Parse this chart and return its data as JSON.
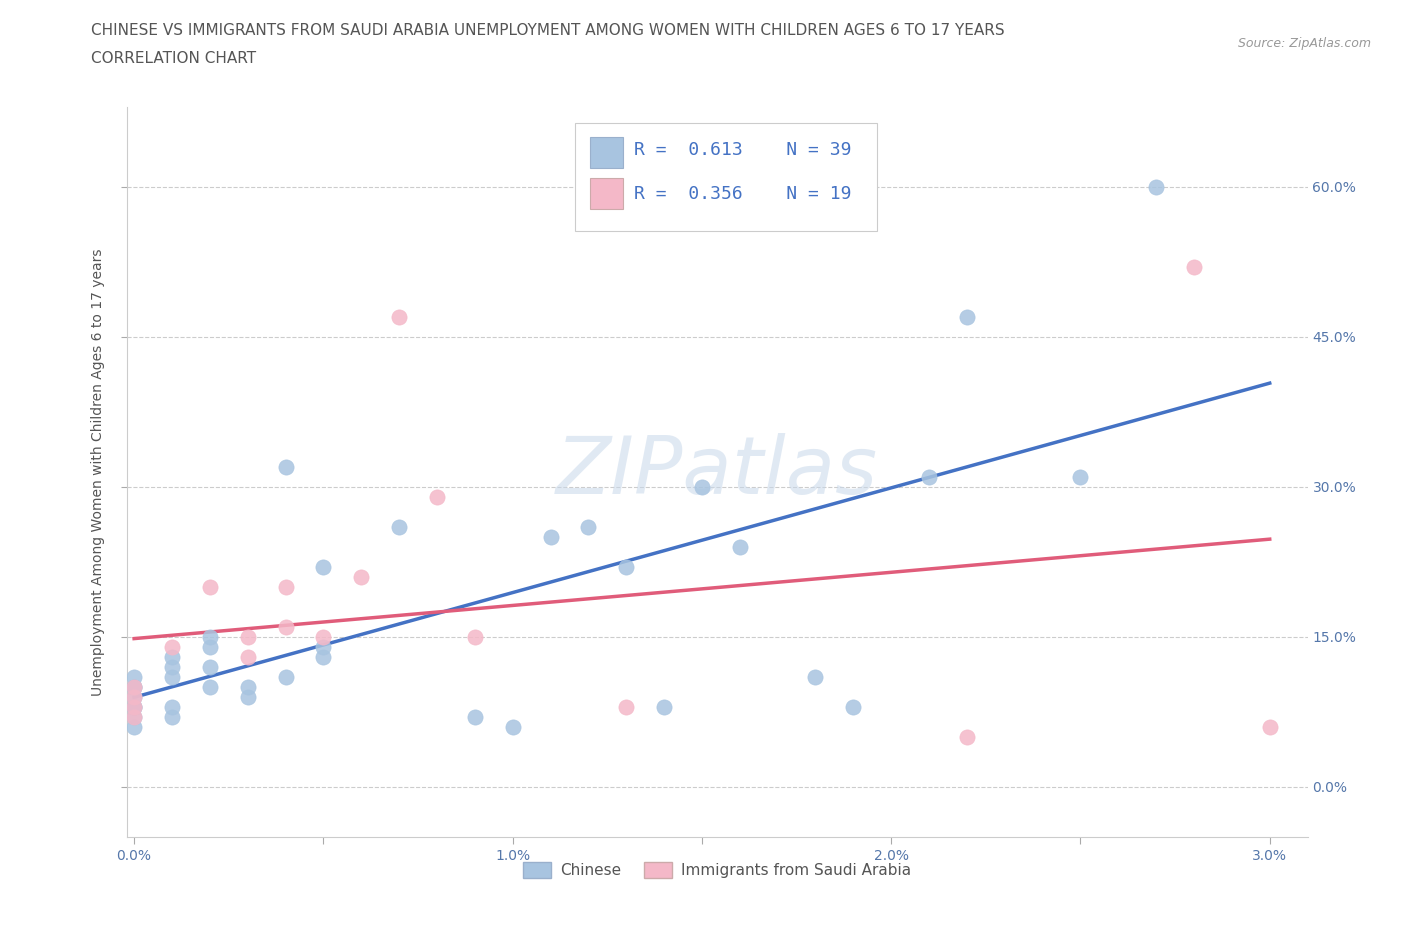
{
  "title_line1": "CHINESE VS IMMIGRANTS FROM SAUDI ARABIA UNEMPLOYMENT AMONG WOMEN WITH CHILDREN AGES 6 TO 17 YEARS",
  "title_line2": "CORRELATION CHART",
  "source_text": "Source: ZipAtlas.com",
  "ylabel": "Unemployment Among Women with Children Ages 6 to 17 years",
  "watermark": "ZIPatlas",
  "xlim": [
    -0.0002,
    0.031
  ],
  "ylim": [
    -0.05,
    0.68
  ],
  "xticks": [
    0.0,
    0.005,
    0.01,
    0.015,
    0.02,
    0.025,
    0.03
  ],
  "xtick_labels": [
    "0.0%",
    "",
    "1.0%",
    "",
    "2.0%",
    "",
    "3.0%"
  ],
  "yticks": [
    0.0,
    0.15,
    0.3,
    0.45,
    0.6
  ],
  "ytick_labels_right": [
    "0.0%",
    "15.0%",
    "30.0%",
    "45.0%",
    "60.0%"
  ],
  "chinese_color": "#a8c4e0",
  "saudi_color": "#f4b8c8",
  "line_chinese_color": "#4472c4",
  "line_saudi_color": "#e05c7a",
  "legend_R1": "R =  0.613",
  "legend_N1": "N = 39",
  "legend_R2": "R =  0.356",
  "legend_N2": "N = 19",
  "chinese_x": [
    0.0,
    0.0,
    0.0,
    0.0,
    0.0,
    0.0,
    0.0,
    0.0,
    0.001,
    0.001,
    0.001,
    0.001,
    0.001,
    0.002,
    0.002,
    0.002,
    0.002,
    0.003,
    0.003,
    0.004,
    0.004,
    0.005,
    0.005,
    0.005,
    0.007,
    0.009,
    0.01,
    0.011,
    0.012,
    0.013,
    0.014,
    0.015,
    0.016,
    0.018,
    0.019,
    0.021,
    0.022,
    0.025,
    0.027
  ],
  "chinese_y": [
    0.06,
    0.07,
    0.08,
    0.08,
    0.09,
    0.1,
    0.1,
    0.11,
    0.07,
    0.08,
    0.11,
    0.12,
    0.13,
    0.1,
    0.12,
    0.14,
    0.15,
    0.09,
    0.1,
    0.11,
    0.32,
    0.13,
    0.14,
    0.22,
    0.26,
    0.07,
    0.06,
    0.25,
    0.26,
    0.22,
    0.08,
    0.3,
    0.24,
    0.11,
    0.08,
    0.31,
    0.47,
    0.31,
    0.6
  ],
  "saudi_x": [
    0.0,
    0.0,
    0.0,
    0.0,
    0.001,
    0.002,
    0.003,
    0.003,
    0.004,
    0.004,
    0.005,
    0.006,
    0.007,
    0.008,
    0.009,
    0.013,
    0.022,
    0.028,
    0.03
  ],
  "saudi_y": [
    0.07,
    0.08,
    0.09,
    0.1,
    0.14,
    0.2,
    0.13,
    0.15,
    0.16,
    0.2,
    0.15,
    0.21,
    0.47,
    0.29,
    0.15,
    0.08,
    0.05,
    0.52,
    0.06
  ],
  "bg_color": "#ffffff",
  "grid_color": "#cccccc",
  "title_fontsize": 11,
  "axis_label_fontsize": 10,
  "tick_fontsize": 10,
  "legend_fontsize": 12,
  "source_fontsize": 9
}
